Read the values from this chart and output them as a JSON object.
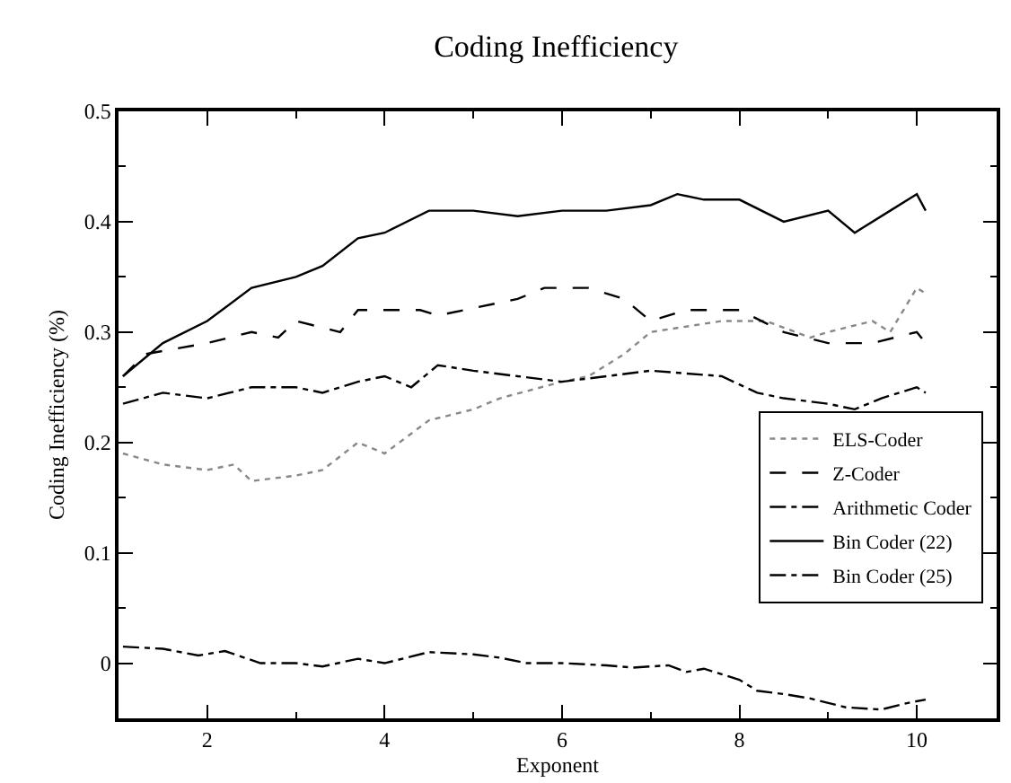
{
  "chart_data": {
    "type": "line",
    "title": "Coding Inefficiency",
    "xlabel": "Exponent",
    "ylabel": "Coding Inefficiency (%)",
    "xlim": [
      1,
      10.9
    ],
    "ylim": [
      -0.05,
      0.5
    ],
    "xticks": [
      2,
      4,
      6,
      8,
      10
    ],
    "yticks": [
      0,
      0.1,
      0.2,
      0.3,
      0.4,
      0.5
    ],
    "grid": false,
    "legend": "bottom right",
    "marker": "none",
    "series": [
      {
        "name": "ELS-Coder",
        "color": "#888888",
        "line_style": "dotted",
        "x": [
          1.05,
          1.5,
          2,
          2.3,
          2.5,
          3,
          3.3,
          3.7,
          4,
          4.5,
          5,
          5.3,
          6,
          6.3,
          6.7,
          7,
          7.8,
          8.3,
          8.8,
          9,
          9.5,
          9.7,
          10,
          10.1
        ],
        "values": [
          0.19,
          0.18,
          0.175,
          0.18,
          0.165,
          0.17,
          0.175,
          0.2,
          0.19,
          0.22,
          0.23,
          0.24,
          0.255,
          0.26,
          0.28,
          0.3,
          0.31,
          0.31,
          0.295,
          0.3,
          0.31,
          0.3,
          0.34,
          0.335
        ]
      },
      {
        "name": "Z-Coder",
        "color": "#000000",
        "line_style": "dashed",
        "x": [
          1.05,
          1.3,
          2,
          2.5,
          2.8,
          3,
          3.5,
          3.7,
          4.4,
          4.6,
          5.5,
          5.8,
          6.3,
          6.7,
          7,
          7.4,
          7.8,
          8,
          8.5,
          9,
          9.5,
          10,
          10.1
        ],
        "values": [
          0.26,
          0.28,
          0.29,
          0.3,
          0.295,
          0.31,
          0.3,
          0.32,
          0.32,
          0.315,
          0.33,
          0.34,
          0.34,
          0.33,
          0.31,
          0.32,
          0.32,
          0.32,
          0.3,
          0.29,
          0.29,
          0.3,
          0.29
        ]
      },
      {
        "name": "Arithmetic Coder",
        "color": "#000000",
        "line_style": "dashdot",
        "x": [
          1.05,
          1.5,
          2,
          2.5,
          3,
          3.3,
          3.7,
          4,
          4.3,
          4.6,
          5,
          5.5,
          6,
          6.5,
          7,
          7.8,
          8.2,
          8.5,
          9,
          9.3,
          9.6,
          10,
          10.1
        ],
        "values": [
          0.235,
          0.245,
          0.24,
          0.25,
          0.25,
          0.245,
          0.255,
          0.26,
          0.25,
          0.27,
          0.265,
          0.26,
          0.255,
          0.26,
          0.265,
          0.26,
          0.245,
          0.24,
          0.235,
          0.23,
          0.24,
          0.25,
          0.245
        ]
      },
      {
        "name": "Bin Coder (22)",
        "color": "#000000",
        "line_style": "solid",
        "x": [
          1.05,
          1.5,
          2,
          2.5,
          3,
          3.3,
          3.7,
          4,
          4.5,
          5,
          5.5,
          6,
          6.5,
          7,
          7.3,
          7.6,
          8,
          8.5,
          9,
          9.3,
          9.7,
          10,
          10.1
        ],
        "values": [
          0.26,
          0.29,
          0.31,
          0.34,
          0.35,
          0.36,
          0.385,
          0.39,
          0.41,
          0.41,
          0.405,
          0.41,
          0.41,
          0.415,
          0.425,
          0.42,
          0.42,
          0.4,
          0.41,
          0.39,
          0.41,
          0.425,
          0.41
        ]
      },
      {
        "name": "Bin Coder (25)",
        "color": "#000000",
        "line_style": "dashdot",
        "x": [
          1.05,
          1.5,
          1.9,
          2.2,
          2.6,
          3,
          3.3,
          3.7,
          4,
          4.5,
          5,
          5.3,
          5.6,
          6,
          6.5,
          6.8,
          7.2,
          7.4,
          7.6,
          8,
          8.2,
          8.5,
          8.8,
          9.2,
          9.6,
          9.9,
          10.1
        ],
        "values": [
          0.015,
          0.013,
          0.007,
          0.011,
          0,
          0,
          -0.003,
          0.004,
          0,
          0.01,
          0.008,
          0.005,
          0,
          0,
          -0.002,
          -0.004,
          -0.002,
          -0.008,
          -0.005,
          -0.015,
          -0.025,
          -0.028,
          -0.032,
          -0.04,
          -0.042,
          -0.036,
          -0.033
        ]
      }
    ]
  }
}
